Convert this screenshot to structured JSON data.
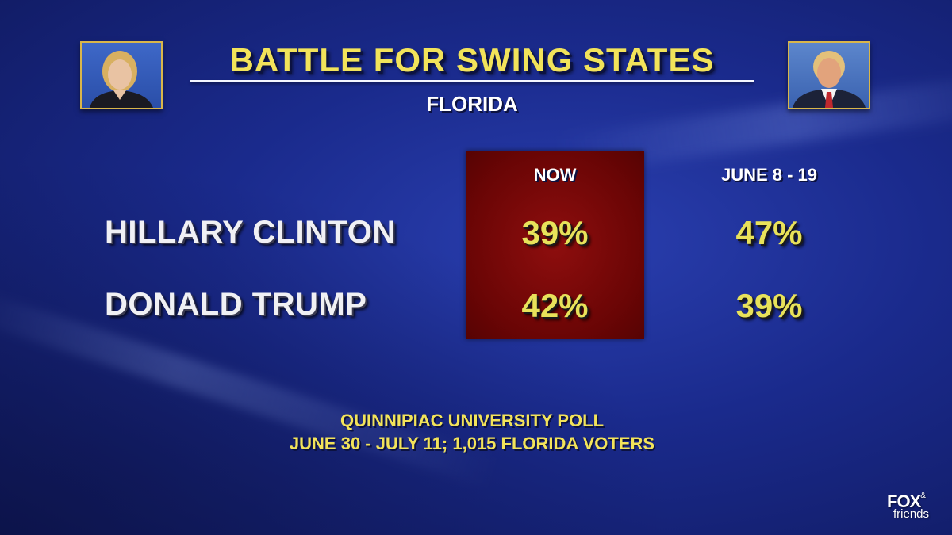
{
  "title": "BATTLE FOR SWING STATES",
  "subtitle": "FLORIDA",
  "photos": {
    "left": "candidate-photo",
    "right": "candidate-photo"
  },
  "columns": [
    "NOW",
    "JUNE 8 - 19"
  ],
  "rows": [
    {
      "name": "HILLARY CLINTON",
      "values": [
        "39%",
        "47%"
      ]
    },
    {
      "name": "DONALD TRUMP",
      "values": [
        "42%",
        "39%"
      ]
    }
  ],
  "source": {
    "line1": "QUINNIPIAC UNIVERSITY POLL",
    "line2": "JUNE 30 - JULY 11; 1,015 FLORIDA VOTERS"
  },
  "logo": {
    "brand": "FOX",
    "amp": "&",
    "sub": "friends"
  },
  "colors": {
    "background": "#1a2a8c",
    "title": "#f2e35a",
    "values": "#e8e25a",
    "highlight": "#7a0808",
    "frame": "#d9b64a"
  }
}
